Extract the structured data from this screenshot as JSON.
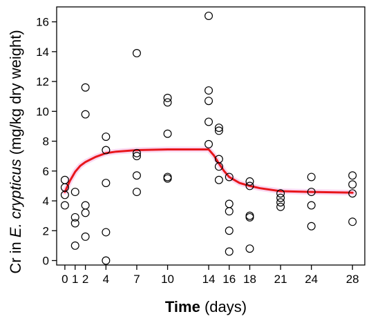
{
  "chart_data": {
    "type": "scatter",
    "title": "",
    "xlabel": {
      "bold": "Time",
      "rest": " (days)"
    },
    "ylabel": {
      "prefix": "Cr in ",
      "italic": "E. crypticus",
      "suffix": " (mg/kg dry weight)"
    },
    "xlim": [
      -0.8,
      29.2
    ],
    "ylim": [
      -0.3,
      17
    ],
    "xticks": [
      0,
      1,
      2,
      4,
      7,
      10,
      14,
      16,
      18,
      21,
      24,
      28
    ],
    "yticks": [
      0,
      2,
      4,
      6,
      8,
      10,
      12,
      14,
      16
    ],
    "grid": false,
    "legend": "none",
    "points": [
      {
        "x": 0,
        "y": 5.4
      },
      {
        "x": 0,
        "y": 4.9
      },
      {
        "x": 0,
        "y": 4.4
      },
      {
        "x": 0,
        "y": 3.7
      },
      {
        "x": 1,
        "y": 4.6
      },
      {
        "x": 1,
        "y": 2.9
      },
      {
        "x": 1,
        "y": 2.5
      },
      {
        "x": 1,
        "y": 1.0
      },
      {
        "x": 2,
        "y": 11.6
      },
      {
        "x": 2,
        "y": 9.8
      },
      {
        "x": 2,
        "y": 3.7
      },
      {
        "x": 2,
        "y": 3.2
      },
      {
        "x": 2,
        "y": 1.6
      },
      {
        "x": 4,
        "y": 8.3
      },
      {
        "x": 4,
        "y": 7.4
      },
      {
        "x": 4,
        "y": 5.2
      },
      {
        "x": 4,
        "y": 1.9
      },
      {
        "x": 4,
        "y": 0.0
      },
      {
        "x": 7,
        "y": 13.9
      },
      {
        "x": 7,
        "y": 7.2
      },
      {
        "x": 7,
        "y": 7.0
      },
      {
        "x": 7,
        "y": 5.7
      },
      {
        "x": 7,
        "y": 4.6
      },
      {
        "x": 10,
        "y": 10.9
      },
      {
        "x": 10,
        "y": 10.6
      },
      {
        "x": 10,
        "y": 8.5
      },
      {
        "x": 10,
        "y": 5.6
      },
      {
        "x": 10,
        "y": 5.5
      },
      {
        "x": 14,
        "y": 16.4
      },
      {
        "x": 14,
        "y": 11.4
      },
      {
        "x": 14,
        "y": 10.7
      },
      {
        "x": 14,
        "y": 9.3
      },
      {
        "x": 14,
        "y": 7.8
      },
      {
        "x": 15,
        "y": 8.9
      },
      {
        "x": 15,
        "y": 8.7
      },
      {
        "x": 15,
        "y": 6.8
      },
      {
        "x": 15,
        "y": 6.3
      },
      {
        "x": 15,
        "y": 5.4
      },
      {
        "x": 16,
        "y": 5.6
      },
      {
        "x": 16,
        "y": 3.8
      },
      {
        "x": 16,
        "y": 3.3
      },
      {
        "x": 16,
        "y": 2.0
      },
      {
        "x": 16,
        "y": 0.6
      },
      {
        "x": 18,
        "y": 5.3
      },
      {
        "x": 18,
        "y": 5.0
      },
      {
        "x": 18,
        "y": 3.0
      },
      {
        "x": 18,
        "y": 2.9
      },
      {
        "x": 18,
        "y": 0.8
      },
      {
        "x": 21,
        "y": 4.5
      },
      {
        "x": 21,
        "y": 4.2
      },
      {
        "x": 21,
        "y": 3.9
      },
      {
        "x": 21,
        "y": 3.6
      },
      {
        "x": 24,
        "y": 5.6
      },
      {
        "x": 24,
        "y": 4.6
      },
      {
        "x": 24,
        "y": 3.7
      },
      {
        "x": 24,
        "y": 2.3
      },
      {
        "x": 28,
        "y": 5.7
      },
      {
        "x": 28,
        "y": 5.1
      },
      {
        "x": 28,
        "y": 4.5
      },
      {
        "x": 28,
        "y": 2.6
      }
    ],
    "fit": {
      "color": "#e8161b",
      "x": [
        0,
        0.5,
        1,
        1.5,
        2,
        3,
        4,
        5,
        7,
        10,
        14,
        14.5,
        15,
        15.5,
        16,
        17,
        18,
        19,
        21,
        24,
        28
      ],
      "y": [
        4.6,
        5.35,
        5.95,
        6.35,
        6.6,
        6.95,
        7.2,
        7.3,
        7.4,
        7.45,
        7.45,
        7.05,
        6.5,
        6.0,
        5.6,
        5.2,
        5.0,
        4.85,
        4.65,
        4.6,
        4.55
      ]
    }
  }
}
